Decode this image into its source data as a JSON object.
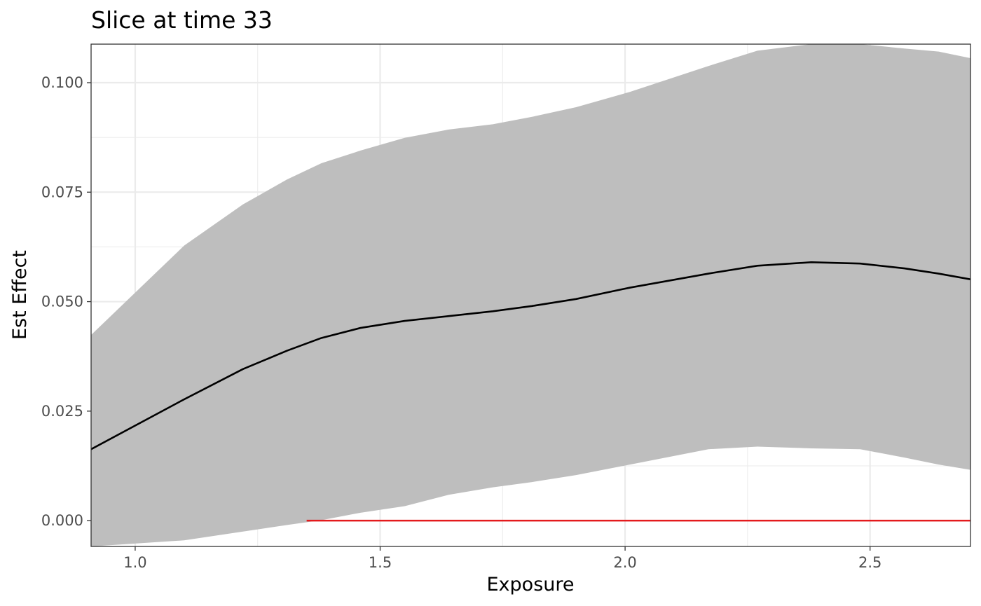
{
  "chart_data": {
    "type": "line",
    "title": "Slice at time 33",
    "xlabel": "Exposure",
    "ylabel": "Est Effect",
    "xlim": [
      0.91,
      2.705
    ],
    "ylim": [
      -0.0059,
      0.1088
    ],
    "x_ticks": [
      1.0,
      1.5,
      2.0,
      2.5
    ],
    "x_tick_labels": [
      "1.0",
      "1.5",
      "2.0",
      "2.5"
    ],
    "y_ticks": [
      0.0,
      0.025,
      0.05,
      0.075,
      0.1
    ],
    "y_tick_labels": [
      "0.000",
      "0.025",
      "0.050",
      "0.075",
      "0.100"
    ],
    "grid": true,
    "legend": "none",
    "x": [
      0.91,
      1.1,
      1.22,
      1.31,
      1.38,
      1.46,
      1.55,
      1.64,
      1.73,
      1.81,
      1.9,
      2.01,
      2.17,
      2.27,
      2.38,
      2.48,
      2.57,
      2.64,
      2.705
    ],
    "series": [
      {
        "values": [
          0.0163,
          0.0277,
          0.0346,
          0.0388,
          0.0417,
          0.044,
          0.0456,
          0.0467,
          0.0478,
          0.049,
          0.0506,
          0.0532,
          0.0564,
          0.0582,
          0.059,
          0.0587,
          0.0576,
          0.0564,
          0.0551
        ],
        "color": "#000000"
      }
    ],
    "band": {
      "lower": [
        -0.0059,
        -0.0045,
        -0.0025,
        -0.001,
        0.0001,
        0.0018,
        0.0033,
        0.0059,
        0.0076,
        0.0088,
        0.0104,
        0.0128,
        0.0163,
        0.0169,
        0.0165,
        0.0163,
        0.0144,
        0.0128,
        0.0116
      ],
      "upper": [
        0.0424,
        0.0628,
        0.0722,
        0.0779,
        0.0816,
        0.0845,
        0.0874,
        0.0893,
        0.0905,
        0.0922,
        0.0944,
        0.0979,
        0.1038,
        0.1073,
        0.1088,
        0.1088,
        0.1078,
        0.1071,
        0.1056
      ],
      "color": "#bebebe"
    },
    "reference_line": {
      "y": 0.0,
      "x_start": 1.35,
      "color": "#e41a1c"
    },
    "colors": {
      "panel_border": "#333333",
      "grid": "#ebebeb",
      "tick_text": "#4d4d4d"
    }
  }
}
